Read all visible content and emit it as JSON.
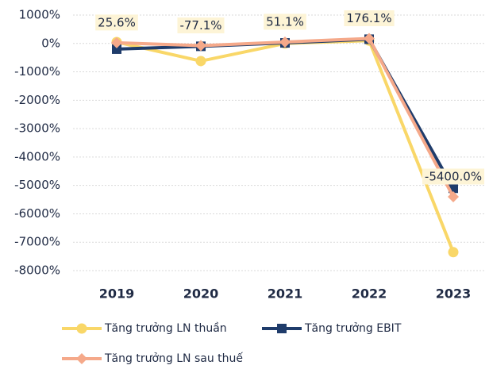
{
  "chart_data": {
    "type": "line",
    "categories": [
      "2019",
      "2020",
      "2021",
      "2022",
      "2023"
    ],
    "series": [
      {
        "name": "Tăng trưởng LN thuần",
        "color": "#f9d768",
        "marker": "circle",
        "values": [
          50,
          -620,
          0,
          100,
          -7350
        ]
      },
      {
        "name": "Tăng trưởng EBIT",
        "color": "#1f3c6b",
        "marker": "square",
        "values": [
          -200,
          -100,
          20,
          150,
          -5100
        ]
      },
      {
        "name": "Tăng trưởng LN sau thuế",
        "color": "#f5a98a",
        "marker": "diamond",
        "values": [
          25.6,
          -77.1,
          51.1,
          176.1,
          -5400
        ],
        "value_labels": [
          "25.6%",
          "-77.1%",
          "51.1%",
          "176.1%",
          "-5400.0%"
        ]
      }
    ],
    "ylim": [
      -8000,
      1000
    ],
    "yticks": [
      {
        "value": 1000,
        "label": "1000%"
      },
      {
        "value": 0,
        "label": "0%"
      },
      {
        "value": -1000,
        "label": "-1000%"
      },
      {
        "value": -2000,
        "label": "-2000%"
      },
      {
        "value": -3000,
        "label": "-3000%"
      },
      {
        "value": -4000,
        "label": "-4000%"
      },
      {
        "value": -5000,
        "label": "-5000%"
      },
      {
        "value": -6000,
        "label": "-6000%"
      },
      {
        "value": -7000,
        "label": "-7000%"
      },
      {
        "value": -8000,
        "label": "-8000%"
      }
    ],
    "grid": true
  }
}
